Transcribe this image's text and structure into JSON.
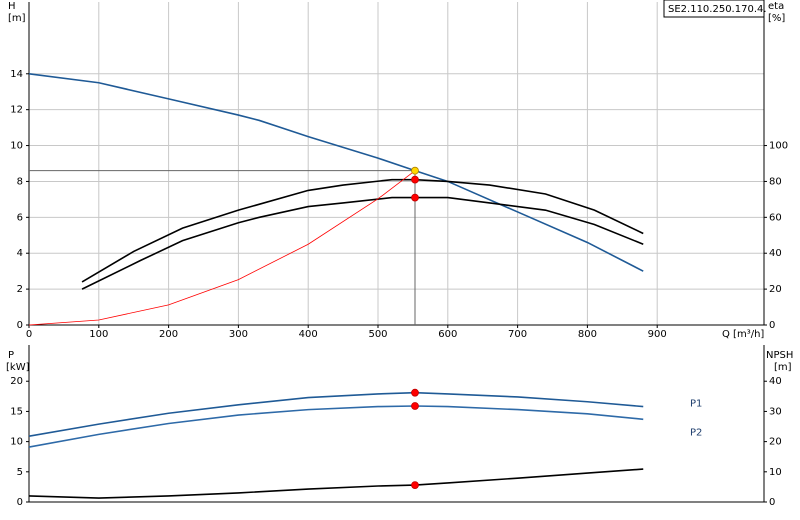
{
  "chart_data": [
    {
      "type": "line",
      "title": "SE2.110.250.170.4.",
      "x_label": "Q [m³/h]",
      "y_label": "H",
      "y_unit": "[m]",
      "y2_label": "eta",
      "y2_unit": "[%]",
      "xlim": [
        0,
        1053
      ],
      "xticks": [
        0,
        100,
        200,
        300,
        400,
        500,
        600,
        700,
        800,
        900
      ],
      "ylim": [
        0,
        18
      ],
      "yticks": [
        0,
        2,
        4,
        6,
        8,
        10,
        12,
        14
      ],
      "y2lim": [
        0,
        180
      ],
      "y2ticks": [
        0,
        20,
        40,
        60,
        80,
        100
      ],
      "grid": true,
      "series": [
        {
          "color": "#1f5a96",
          "axis": "y",
          "x": [
            0,
            100,
            200,
            300,
            330,
            400,
            500,
            553,
            600,
            700,
            800,
            880
          ],
          "values": [
            14.0,
            13.5,
            12.6,
            11.7,
            11.4,
            10.5,
            9.3,
            8.6,
            8.0,
            6.3,
            4.6,
            3.0
          ]
        },
        {
          "color": "#000000",
          "axis": "y2",
          "x": [
            76,
            150,
            220,
            300,
            400,
            450,
            520,
            553,
            600,
            660,
            740,
            810,
            880
          ],
          "values": [
            24,
            41,
            54,
            64,
            75,
            78,
            81,
            81,
            80,
            78,
            73,
            64,
            51
          ]
        },
        {
          "color": "#000000",
          "axis": "y2",
          "x": [
            76,
            160,
            220,
            300,
            330,
            400,
            450,
            520,
            553,
            600,
            660,
            740,
            810,
            880
          ],
          "values": [
            20,
            36,
            47,
            57,
            60,
            66,
            68,
            71,
            71,
            71,
            68,
            64,
            56,
            45
          ]
        },
        {
          "color": "#ff0000",
          "axis": "y",
          "x": [
            0,
            100,
            200,
            300,
            400,
            500,
            553
          ],
          "values": [
            0,
            0.28,
            1.12,
            2.53,
            4.5,
            7.03,
            8.6
          ]
        }
      ],
      "markers": [
        {
          "x": 553,
          "y": 8.6,
          "axis": "y",
          "color": "#ffd700"
        },
        {
          "x": 553,
          "y": 81,
          "axis": "y2",
          "color": "#ff0000"
        },
        {
          "x": 553,
          "y": 71,
          "axis": "y2",
          "color": "#ff0000"
        }
      ]
    },
    {
      "type": "line",
      "y_label": "P",
      "y_unit": "[kW]",
      "y2_label": "NPSH",
      "y2_unit": "[m]",
      "xlim": [
        0,
        1053
      ],
      "ylim": [
        0,
        26
      ],
      "yticks": [
        0,
        5,
        10,
        15,
        20
      ],
      "y2lim": [
        0,
        52
      ],
      "y2ticks": [
        0,
        10,
        20,
        30,
        40
      ],
      "grid": false,
      "series": [
        {
          "name": "P1",
          "color": "#1f5a96",
          "axis": "y",
          "x": [
            0,
            100,
            200,
            300,
            400,
            500,
            553,
            600,
            700,
            800,
            880
          ],
          "values": [
            10.9,
            12.9,
            14.7,
            16.1,
            17.3,
            17.9,
            18.1,
            17.9,
            17.4,
            16.6,
            15.8
          ]
        },
        {
          "name": "P2",
          "color": "#2e6aa8",
          "axis": "y",
          "x": [
            0,
            100,
            200,
            300,
            400,
            500,
            553,
            600,
            700,
            800,
            880
          ],
          "values": [
            9.1,
            11.2,
            13.0,
            14.4,
            15.3,
            15.8,
            15.9,
            15.8,
            15.3,
            14.6,
            13.7
          ]
        },
        {
          "color": "#000000",
          "axis": "y2",
          "x": [
            0,
            100,
            200,
            300,
            400,
            500,
            553,
            600,
            700,
            800,
            880
          ],
          "values": [
            2.0,
            1.3,
            2.0,
            3.0,
            4.3,
            5.3,
            5.6,
            6.3,
            7.9,
            9.6,
            10.9
          ]
        }
      ],
      "markers": [
        {
          "x": 553,
          "y": 18.1,
          "axis": "y",
          "color": "#ff0000"
        },
        {
          "x": 553,
          "y": 15.9,
          "axis": "y",
          "color": "#ff0000"
        },
        {
          "x": 553,
          "y": 5.6,
          "axis": "y2",
          "color": "#ff0000"
        }
      ]
    }
  ]
}
